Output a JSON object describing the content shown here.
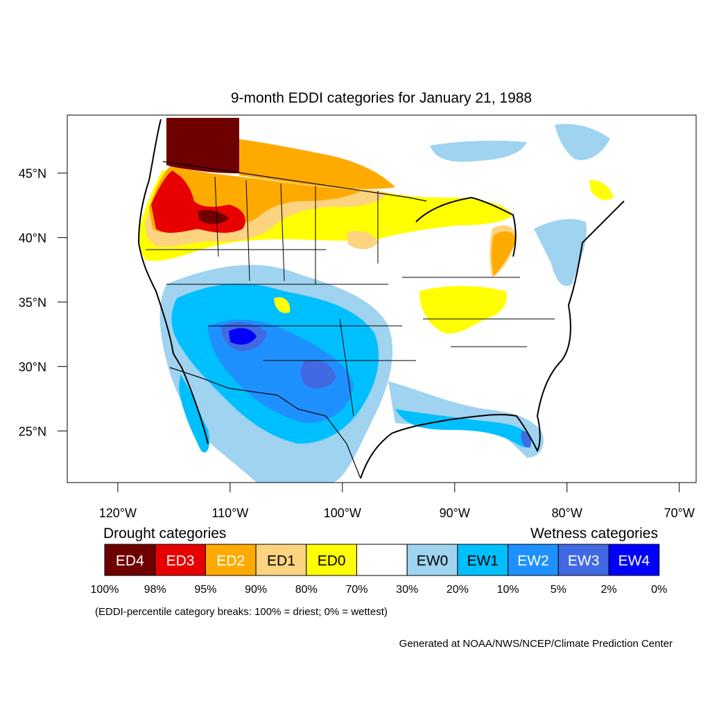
{
  "title": "9-month EDDI categories for January 21, 1988",
  "map": {
    "lon_range": [
      -124.5,
      -68.5
    ],
    "lat_range": [
      21,
      49.5
    ],
    "lat_ticks": [
      {
        "value": 45,
        "label": "45°N"
      },
      {
        "value": 40,
        "label": "40°N"
      },
      {
        "value": 35,
        "label": "35°N"
      },
      {
        "value": 30,
        "label": "30°N"
      },
      {
        "value": 25,
        "label": "25°N"
      }
    ],
    "lon_ticks": [
      {
        "value": -120,
        "label": "120°W"
      },
      {
        "value": -110,
        "label": "110°W"
      },
      {
        "value": -100,
        "label": "100°W"
      },
      {
        "value": -90,
        "label": "90°W"
      },
      {
        "value": -80,
        "label": "80°W"
      },
      {
        "value": -70,
        "label": "70°W"
      }
    ]
  },
  "legend": {
    "drought_heading": "Drought categories",
    "wetness_heading": "Wetness categories",
    "categories": [
      {
        "label": "ED4",
        "color": "#6e0000",
        "text_color": "#ffffff"
      },
      {
        "label": "ED3",
        "color": "#e60000",
        "text_color": "#ffffff"
      },
      {
        "label": "ED2",
        "color": "#ffaa00",
        "text_color": "#ffffff"
      },
      {
        "label": "ED1",
        "color": "#fcd37f",
        "text_color": "#000000"
      },
      {
        "label": "ED0",
        "color": "#ffff00",
        "text_color": "#000000"
      },
      {
        "label": "",
        "color": "#ffffff",
        "text_color": "#000000"
      },
      {
        "label": "EW0",
        "color": "#9fd3f0",
        "text_color": "#000000"
      },
      {
        "label": "EW1",
        "color": "#00bfff",
        "text_color": "#000000"
      },
      {
        "label": "EW2",
        "color": "#1e90ff",
        "text_color": "#ffffff"
      },
      {
        "label": "EW3",
        "color": "#4169e1",
        "text_color": "#ffffff"
      },
      {
        "label": "EW4",
        "color": "#0000ff",
        "text_color": "#ffffff"
      }
    ],
    "breaks": [
      "100%",
      "98%",
      "95%",
      "90%",
      "80%",
      "70%",
      "30%",
      "20%",
      "10%",
      "5%",
      "2%",
      "0%"
    ],
    "note": "(EDDI-percentile category breaks: 100% = driest; 0% = wettest)"
  },
  "credit": "Generated at NOAA/NWS/NCEP/Climate Prediction Center"
}
